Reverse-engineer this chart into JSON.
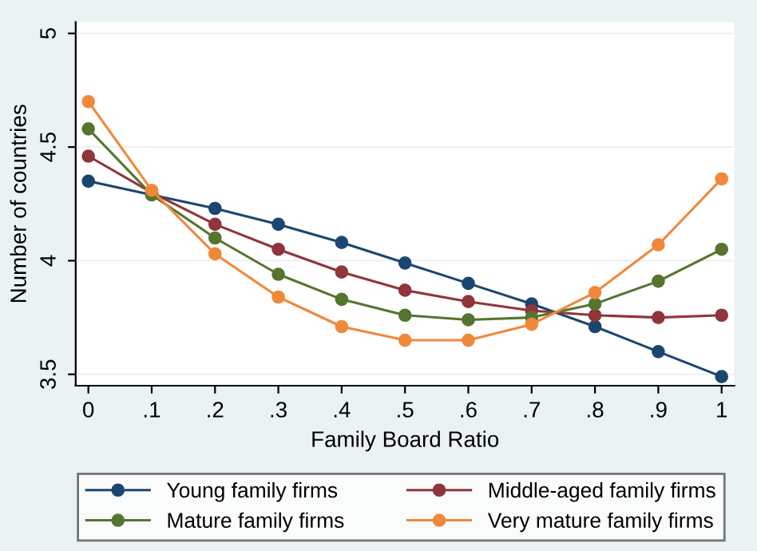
{
  "chart_data": {
    "type": "line",
    "xlabel": "Family Board Ratio",
    "ylabel": "Number of countries",
    "x": [
      0,
      0.1,
      0.2,
      0.3,
      0.4,
      0.5,
      0.6,
      0.7,
      0.8,
      0.9,
      1
    ],
    "xlim": [
      -0.02,
      1.02
    ],
    "ylim": [
      3.45,
      5.05
    ],
    "xticks": [
      0,
      {
        "value": 0.1,
        "label": ".1"
      },
      {
        "value": 0.2,
        "label": ".2"
      },
      {
        "value": 0.3,
        "label": ".3"
      },
      {
        "value": 0.4,
        "label": ".4"
      },
      {
        "value": 0.5,
        "label": ".5"
      },
      {
        "value": 0.6,
        "label": ".6"
      },
      {
        "value": 0.7,
        "label": ".7"
      },
      {
        "value": 0.8,
        "label": ".8"
      },
      {
        "value": 0.9,
        "label": ".9"
      },
      1
    ],
    "yticks": [
      3.5,
      4,
      4.5,
      5
    ],
    "grid": "y",
    "legend": "bottom",
    "marker": "circle",
    "line_style": "solid",
    "series": [
      {
        "name": "Young family firms",
        "color": "#1a476f",
        "values": [
          4.35,
          4.29,
          4.23,
          4.16,
          4.08,
          3.99,
          3.9,
          3.81,
          3.71,
          3.6,
          3.49
        ]
      },
      {
        "name": "Middle-aged family firms",
        "color": "#90353b",
        "values": [
          4.46,
          4.3,
          4.16,
          4.05,
          3.95,
          3.87,
          3.82,
          3.78,
          3.76,
          3.75,
          3.76
        ]
      },
      {
        "name": "Mature family firms",
        "color": "#55752f",
        "values": [
          4.58,
          4.29,
          4.1,
          3.94,
          3.83,
          3.76,
          3.74,
          3.75,
          3.81,
          3.91,
          4.05
        ]
      },
      {
        "name": "Very mature family firms",
        "color": "#f0883a",
        "values": [
          4.7,
          4.31,
          4.03,
          3.84,
          3.71,
          3.65,
          3.65,
          3.72,
          3.86,
          4.07,
          4.36
        ]
      }
    ]
  }
}
